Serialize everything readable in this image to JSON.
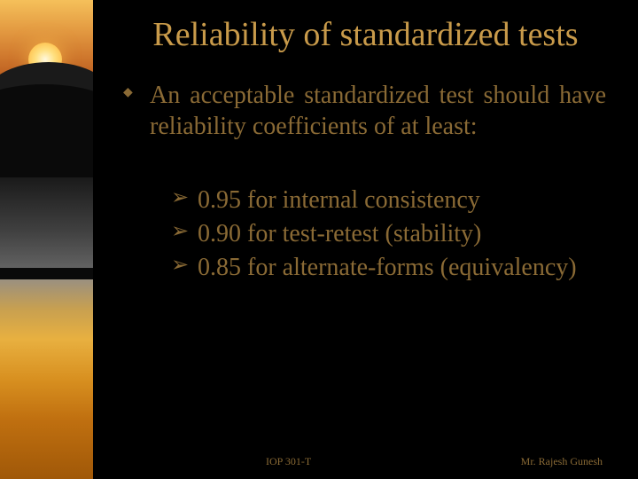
{
  "title": "Reliability of standardized tests",
  "main_bullet": "An acceptable standardized test should have reliability coefficients of at least:",
  "sub_bullets": [
    "0.95 for internal consistency",
    "0.90 for test-retest (stability)",
    "0.85 for alternate-forms (equivalency)"
  ],
  "footer_left": "IOP 301-T",
  "footer_right": "Mr. Rajesh Gunesh",
  "colors": {
    "background": "#000000",
    "title_color": "#c89a4a",
    "body_color": "#8a6a35"
  },
  "typography": {
    "title_fontsize": 38,
    "body_fontsize": 28,
    "footer_fontsize": 12,
    "font_family": "Georgia"
  }
}
